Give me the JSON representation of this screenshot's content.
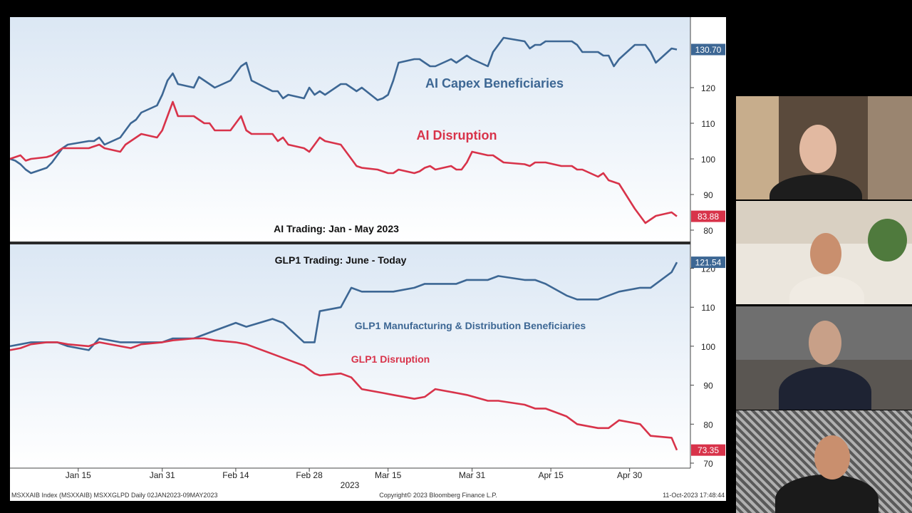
{
  "chart_data": [
    {
      "type": "line",
      "title": "AI Trading: Jan - May 2023",
      "ylim": [
        78,
        140
      ],
      "yticks": [
        80,
        90,
        100,
        110,
        120
      ],
      "annotations": [
        "AI Capex Beneficiaries",
        "AI Disruption"
      ],
      "series": [
        {
          "name": "AI Capex Beneficiaries",
          "color": "#3d6794",
          "last_label": "130.70",
          "x": [
            "2023-01-02",
            "2023-01-03",
            "2023-01-04",
            "2023-01-05",
            "2023-01-06",
            "2023-01-09",
            "2023-01-10",
            "2023-01-11",
            "2023-01-12",
            "2023-01-13",
            "2023-01-17",
            "2023-01-18",
            "2023-01-19",
            "2023-01-20",
            "2023-01-23",
            "2023-01-24",
            "2023-01-25",
            "2023-01-26",
            "2023-01-27",
            "2023-01-30",
            "2023-01-31",
            "2023-02-01",
            "2023-02-02",
            "2023-02-03",
            "2023-02-06",
            "2023-02-07",
            "2023-02-08",
            "2023-02-09",
            "2023-02-10",
            "2023-02-13",
            "2023-02-14",
            "2023-02-15",
            "2023-02-16",
            "2023-02-17",
            "2023-02-21",
            "2023-02-22",
            "2023-02-23",
            "2023-02-24",
            "2023-02-27",
            "2023-02-28",
            "2023-03-01",
            "2023-03-02",
            "2023-03-03",
            "2023-03-06",
            "2023-03-07",
            "2023-03-08",
            "2023-03-09",
            "2023-03-10",
            "2023-03-13",
            "2023-03-14",
            "2023-03-15",
            "2023-03-16",
            "2023-03-17",
            "2023-03-20",
            "2023-03-21",
            "2023-03-22",
            "2023-03-23",
            "2023-03-24",
            "2023-03-27",
            "2023-03-28",
            "2023-03-29",
            "2023-03-30",
            "2023-03-31",
            "2023-04-03",
            "2023-04-04",
            "2023-04-05",
            "2023-04-06",
            "2023-04-10",
            "2023-04-11",
            "2023-04-12",
            "2023-04-13",
            "2023-04-14",
            "2023-04-17",
            "2023-04-18",
            "2023-04-19",
            "2023-04-20",
            "2023-04-21",
            "2023-04-24",
            "2023-04-25",
            "2023-04-26",
            "2023-04-27",
            "2023-04-28",
            "2023-05-01",
            "2023-05-02",
            "2023-05-03",
            "2023-05-04",
            "2023-05-05",
            "2023-05-08",
            "2023-05-09"
          ],
          "values": [
            100,
            99.5,
            98.5,
            97,
            96,
            97.5,
            99,
            101,
            103,
            104,
            105,
            105,
            106,
            104,
            106,
            108,
            110,
            111,
            113,
            115,
            118,
            122,
            124,
            121,
            120,
            123,
            122,
            121,
            120,
            122,
            124,
            126,
            127,
            122,
            119,
            119,
            117,
            118,
            117,
            120,
            118,
            119,
            118,
            121,
            121,
            120,
            119,
            120,
            116.5,
            117,
            118,
            122,
            127,
            128,
            128,
            127,
            126,
            126,
            128,
            127,
            128,
            129,
            128,
            126,
            130,
            132,
            134,
            133,
            131,
            132,
            132,
            133,
            133,
            133,
            133,
            132,
            130,
            130,
            129,
            129,
            126,
            128,
            132,
            132,
            132,
            130,
            127,
            131,
            130.7
          ]
        },
        {
          "name": "AI Disruption",
          "color": "#d8334a",
          "last_label": "83.88",
          "x": [
            "2023-01-02",
            "2023-01-03",
            "2023-01-04",
            "2023-01-05",
            "2023-01-06",
            "2023-01-09",
            "2023-01-10",
            "2023-01-11",
            "2023-01-12",
            "2023-01-13",
            "2023-01-17",
            "2023-01-18",
            "2023-01-19",
            "2023-01-20",
            "2023-01-23",
            "2023-01-24",
            "2023-01-25",
            "2023-01-26",
            "2023-01-27",
            "2023-01-30",
            "2023-01-31",
            "2023-02-01",
            "2023-02-02",
            "2023-02-03",
            "2023-02-06",
            "2023-02-07",
            "2023-02-08",
            "2023-02-09",
            "2023-02-10",
            "2023-02-13",
            "2023-02-14",
            "2023-02-15",
            "2023-02-16",
            "2023-02-17",
            "2023-02-21",
            "2023-02-22",
            "2023-02-23",
            "2023-02-24",
            "2023-02-27",
            "2023-02-28",
            "2023-03-01",
            "2023-03-02",
            "2023-03-03",
            "2023-03-06",
            "2023-03-07",
            "2023-03-08",
            "2023-03-09",
            "2023-03-10",
            "2023-03-13",
            "2023-03-14",
            "2023-03-15",
            "2023-03-16",
            "2023-03-17",
            "2023-03-20",
            "2023-03-21",
            "2023-03-22",
            "2023-03-23",
            "2023-03-24",
            "2023-03-27",
            "2023-03-28",
            "2023-03-29",
            "2023-03-30",
            "2023-03-31",
            "2023-04-03",
            "2023-04-04",
            "2023-04-05",
            "2023-04-06",
            "2023-04-10",
            "2023-04-11",
            "2023-04-12",
            "2023-04-13",
            "2023-04-14",
            "2023-04-17",
            "2023-04-18",
            "2023-04-19",
            "2023-04-20",
            "2023-04-21",
            "2023-04-24",
            "2023-04-25",
            "2023-04-26",
            "2023-04-27",
            "2023-04-28",
            "2023-05-01",
            "2023-05-02",
            "2023-05-03",
            "2023-05-04",
            "2023-05-05",
            "2023-05-08",
            "2023-05-09"
          ],
          "values": [
            100,
            100.5,
            101,
            99.5,
            100,
            100.5,
            101,
            102,
            103,
            103,
            103,
            103.5,
            104,
            103,
            102,
            104,
            105,
            106,
            107,
            106,
            108,
            112,
            116,
            112,
            112,
            111,
            110,
            110,
            108,
            108,
            110,
            112,
            108,
            107,
            107,
            105,
            106,
            104,
            103,
            102,
            104,
            106,
            105,
            104,
            102,
            100,
            98,
            97.5,
            97,
            96.5,
            96,
            96,
            97,
            96,
            96.5,
            97.5,
            98,
            97,
            98,
            97,
            97,
            99,
            102,
            101,
            101,
            100,
            99,
            98.5,
            98,
            99,
            99,
            99,
            98,
            98,
            98,
            97,
            97,
            95,
            96,
            94,
            93.5,
            93,
            86,
            84,
            82,
            83,
            84,
            85,
            83.88
          ]
        }
      ]
    },
    {
      "type": "line",
      "title": "GLP1 Trading: June - Today",
      "ylim": [
        69,
        122
      ],
      "yticks": [
        70,
        80,
        90,
        100,
        110,
        120
      ],
      "xticks": [
        "Jan 15",
        "Jan 31",
        "Feb 14",
        "Feb 28",
        "Mar 15",
        "Mar 31",
        "Apr 15",
        "Apr 30"
      ],
      "xtick_dates": [
        "2023-01-15",
        "2023-01-31",
        "2023-02-14",
        "2023-02-28",
        "2023-03-15",
        "2023-03-31",
        "2023-04-15",
        "2023-04-30"
      ],
      "year_label": "2023",
      "annotations": [
        "GLP1 Manufacturing & Distribution Beneficiaries",
        "GLP1 Disruption"
      ],
      "series": [
        {
          "name": "GLP1 Manufacturing & Distribution Beneficiaries",
          "color": "#3d6794",
          "last_label": "121.54",
          "x": [
            "2023-01-02",
            "2023-01-04",
            "2023-01-06",
            "2023-01-09",
            "2023-01-11",
            "2023-01-13",
            "2023-01-17",
            "2023-01-19",
            "2023-01-23",
            "2023-01-25",
            "2023-01-27",
            "2023-01-31",
            "2023-02-02",
            "2023-02-06",
            "2023-02-08",
            "2023-02-10",
            "2023-02-14",
            "2023-02-16",
            "2023-02-21",
            "2023-02-23",
            "2023-02-27",
            "2023-03-01",
            "2023-03-02",
            "2023-03-06",
            "2023-03-08",
            "2023-03-10",
            "2023-03-14",
            "2023-03-16",
            "2023-03-20",
            "2023-03-22",
            "2023-03-24",
            "2023-03-28",
            "2023-03-30",
            "2023-04-03",
            "2023-04-05",
            "2023-04-10",
            "2023-04-12",
            "2023-04-14",
            "2023-04-18",
            "2023-04-20",
            "2023-04-24",
            "2023-04-26",
            "2023-04-28",
            "2023-05-02",
            "2023-05-04",
            "2023-05-08",
            "2023-05-09"
          ],
          "values": [
            100,
            100.5,
            101,
            101,
            101,
            100,
            99,
            102,
            101,
            101,
            101,
            101,
            102,
            102,
            103,
            104,
            106,
            105,
            107,
            106,
            101,
            101,
            109,
            110,
            115,
            114,
            114,
            114,
            115,
            116,
            116,
            116,
            117,
            117,
            118,
            117,
            117,
            116,
            113,
            112,
            112,
            113,
            114,
            115,
            115,
            119,
            121.54
          ]
        },
        {
          "name": "GLP1 Disruption",
          "color": "#d8334a",
          "last_label": "73.35",
          "x": [
            "2023-01-02",
            "2023-01-04",
            "2023-01-06",
            "2023-01-09",
            "2023-01-11",
            "2023-01-13",
            "2023-01-17",
            "2023-01-19",
            "2023-01-23",
            "2023-01-25",
            "2023-01-27",
            "2023-01-31",
            "2023-02-02",
            "2023-02-06",
            "2023-02-08",
            "2023-02-10",
            "2023-02-14",
            "2023-02-16",
            "2023-02-21",
            "2023-02-23",
            "2023-02-27",
            "2023-03-01",
            "2023-03-02",
            "2023-03-06",
            "2023-03-08",
            "2023-03-10",
            "2023-03-14",
            "2023-03-16",
            "2023-03-20",
            "2023-03-22",
            "2023-03-24",
            "2023-03-28",
            "2023-03-30",
            "2023-04-03",
            "2023-04-05",
            "2023-04-10",
            "2023-04-12",
            "2023-04-14",
            "2023-04-18",
            "2023-04-20",
            "2023-04-24",
            "2023-04-26",
            "2023-04-28",
            "2023-05-02",
            "2023-05-04",
            "2023-05-08",
            "2023-05-09"
          ],
          "values": [
            99,
            99.5,
            100.5,
            101,
            101,
            100.5,
            100,
            101,
            100,
            99.5,
            100.5,
            101,
            101.5,
            102,
            102,
            101.5,
            101,
            100.5,
            98,
            97,
            95,
            93,
            92.5,
            93,
            92,
            89,
            88,
            87.5,
            86.5,
            87,
            89,
            88,
            87.5,
            86,
            86,
            85,
            84,
            84,
            82,
            80,
            79,
            79,
            81,
            80,
            77,
            76.5,
            73.35
          ]
        }
      ]
    }
  ],
  "footer": {
    "left": "MSXXAIB Index (MSXXAIB) MSXXGLPD  Daily 02JAN2023-09MAY2023",
    "center": "Copyright© 2023 Bloomberg Finance L.P.",
    "right": "11-Oct-2023 17:48:44"
  },
  "video_tiles": [
    {
      "name": "participant-1"
    },
    {
      "name": "participant-2"
    },
    {
      "name": "participant-3"
    },
    {
      "name": "participant-4"
    }
  ]
}
